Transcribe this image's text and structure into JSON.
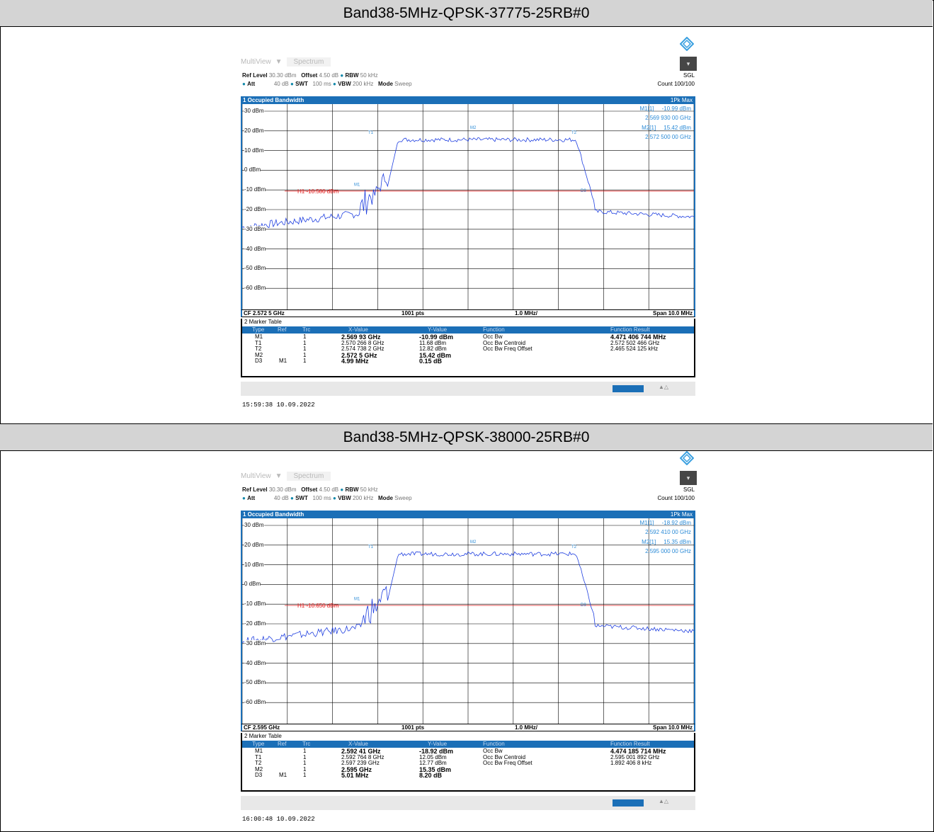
{
  "panels": [
    {
      "header": "Band38-5MHz-QPSK-37775-25RB#0",
      "tabs": {
        "multiview": "MultiView",
        "spectrum": "Spectrum"
      },
      "settings": {
        "ref_level_label": "Ref Level",
        "ref_level": "30.30 dBm",
        "offset_label": "Offset",
        "offset": "4.50 dB",
        "rbw_label": "RBW",
        "rbw": "50 kHz",
        "att_label": "Att",
        "att": "40 dB",
        "swt_label": "SWT",
        "swt": "100 ms",
        "vbw_label": "VBW",
        "vbw": "200 kHz",
        "mode_label": "Mode",
        "mode": "Sweep",
        "sgl": "SGL",
        "count": "Count 100/100"
      },
      "graph_title": "1 Occupied Bandwidth",
      "trace_label": "1Pk Max",
      "readout": {
        "m1_label": "M1[1]",
        "m1_level": "-10.99 dBm",
        "m1_freq": "2.569 930 00 GHz",
        "m2_label": "M2[1]",
        "m2_level": "15.42 dBm",
        "m2_freq": "2.572 500 00 GHz"
      },
      "y_labels": [
        "30 dBm",
        "20 dBm",
        "10 dBm",
        "0 dBm",
        "-10 dBm",
        "-20 dBm",
        "-30 dBm",
        "-40 dBm",
        "-50 dBm",
        "-60 dBm"
      ],
      "h1_label": "H1 -10.580 dBm",
      "h1_level": -10.58,
      "cf": "CF 2.572 5 GHz",
      "pts": "1001 pts",
      "div": "1.0 MHz/",
      "span": "Span 10.0 MHz",
      "marker_table_title": "2 Marker Table",
      "table_headers": [
        "Type",
        "Ref",
        "Trc",
        "X-Value",
        "Y-Value",
        "Function",
        "Function Result"
      ],
      "rows": [
        {
          "type": "M1",
          "ref": "",
          "trc": "1",
          "x": "2.569 93 GHz",
          "y": "-10.99 dBm",
          "fn": "Occ Bw",
          "res": "4.471 406 744 MHz",
          "bold": true
        },
        {
          "type": "T1",
          "ref": "",
          "trc": "1",
          "x": "2.570 266 8 GHz",
          "y": "11.68 dBm",
          "fn": "Occ Bw Centroid",
          "res": "2.572 502 466 GHz",
          "bold": false
        },
        {
          "type": "T2",
          "ref": "",
          "trc": "1",
          "x": "2.574 738 2 GHz",
          "y": "12.82 dBm",
          "fn": "Occ Bw Freq Offset",
          "res": "2.465 524 125 kHz",
          "bold": false
        },
        {
          "type": "M2",
          "ref": "",
          "trc": "1",
          "x": "2.572 5 GHz",
          "y": "15.42 dBm",
          "fn": "",
          "res": "",
          "bold": true
        },
        {
          "type": "D3",
          "ref": "M1",
          "trc": "1",
          "x": "4.99 MHz",
          "y": "0.15 dB",
          "fn": "",
          "res": "",
          "bold": true
        }
      ],
      "timestamp": "15:59:38  10.09.2022"
    },
    {
      "header": "Band38-5MHz-QPSK-38000-25RB#0",
      "tabs": {
        "multiview": "MultiView",
        "spectrum": "Spectrum"
      },
      "settings": {
        "ref_level_label": "Ref Level",
        "ref_level": "30.30 dBm",
        "offset_label": "Offset",
        "offset": "4.50 dB",
        "rbw_label": "RBW",
        "rbw": "50 kHz",
        "att_label": "Att",
        "att": "40 dB",
        "swt_label": "SWT",
        "swt": "100 ms",
        "vbw_label": "VBW",
        "vbw": "200 kHz",
        "mode_label": "Mode",
        "mode": "Sweep",
        "sgl": "SGL",
        "count": "Count 100/100"
      },
      "graph_title": "1 Occupied Bandwidth",
      "trace_label": "1Pk Max",
      "readout": {
        "m1_label": "M1[1]",
        "m1_level": "-18.92 dBm",
        "m1_freq": "2.592 410 00 GHz",
        "m2_label": "M2[1]",
        "m2_level": "15.35 dBm",
        "m2_freq": "2.595 000 00 GHz"
      },
      "y_labels": [
        "30 dBm",
        "20 dBm",
        "10 dBm",
        "0 dBm",
        "-10 dBm",
        "-20 dBm",
        "-30 dBm",
        "-40 dBm",
        "-50 dBm",
        "-60 dBm"
      ],
      "h1_label": "H1 -10.650 dBm",
      "h1_level": -10.65,
      "cf": "CF 2.595 GHz",
      "pts": "1001 pts",
      "div": "1.0 MHz/",
      "span": "Span 10.0 MHz",
      "marker_table_title": "2 Marker Table",
      "table_headers": [
        "Type",
        "Ref",
        "Trc",
        "X-Value",
        "Y-Value",
        "Function",
        "Function Result"
      ],
      "rows": [
        {
          "type": "M1",
          "ref": "",
          "trc": "1",
          "x": "2.592 41 GHz",
          "y": "-18.92 dBm",
          "fn": "Occ Bw",
          "res": "4.474 185 714 MHz",
          "bold": true
        },
        {
          "type": "T1",
          "ref": "",
          "trc": "1",
          "x": "2.592 764 8 GHz",
          "y": "12.05 dBm",
          "fn": "Occ Bw Centroid",
          "res": "2.595 001 892 GHz",
          "bold": false
        },
        {
          "type": "T2",
          "ref": "",
          "trc": "1",
          "x": "2.597 239 GHz",
          "y": "12.77 dBm",
          "fn": "Occ Bw Freq Offset",
          "res": "1.892 406 8 kHz",
          "bold": false
        },
        {
          "type": "M2",
          "ref": "",
          "trc": "1",
          "x": "2.595 GHz",
          "y": "15.35 dBm",
          "fn": "",
          "res": "",
          "bold": true
        },
        {
          "type": "D3",
          "ref": "M1",
          "trc": "1",
          "x": "5.01 MHz",
          "y": "8.20 dB",
          "fn": "",
          "res": "",
          "bold": true
        }
      ],
      "timestamp": "16:00:48  10.09.2022"
    }
  ],
  "colors": {
    "trace": "#1f3fe0",
    "grid": "#000000",
    "limit": "#e02020",
    "accent": "#1b6fb7",
    "marker": "#2a8ad6"
  }
}
